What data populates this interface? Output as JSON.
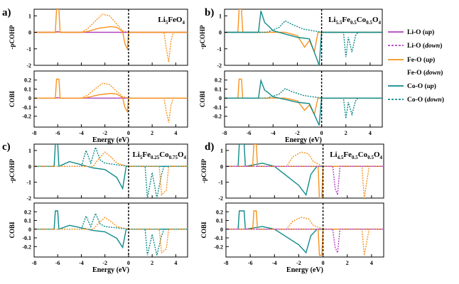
{
  "colors": {
    "li_o": "#b040c0",
    "fe_o": "#f7931e",
    "co_o": "#108a8a",
    "frame": "#000000"
  },
  "legend": [
    {
      "label": "Li-O",
      "spin": "up",
      "color": "#b040c0",
      "style": "solid"
    },
    {
      "label": "Li-O",
      "spin": "down",
      "color": "#b040c0",
      "style": "dashed"
    },
    {
      "label": "Fe-O",
      "spin": "up",
      "color": "#f7931e",
      "style": "solid"
    },
    {
      "label": "Fe-O",
      "spin": "down",
      "color": "#f7931e",
      "style": "dashed"
    },
    {
      "label": "Co-O",
      "spin": "up",
      "color": "#108a8a",
      "style": "solid"
    },
    {
      "label": "Co-O",
      "spin": "down",
      "color": "#108a8a",
      "style": "dashed"
    }
  ],
  "chart_data": [
    {
      "type": "line",
      "panel": "a)",
      "title": "Li5FeO4",
      "xlabel": "Energy (eV)",
      "xlim": [
        -8,
        5
      ],
      "xticks": [
        -8,
        -6,
        -4,
        -2,
        0,
        2,
        4
      ],
      "fermi_level": 0,
      "subplots": [
        {
          "ylabel": "-pCOHP",
          "ylim": [
            -2,
            1.4
          ],
          "yticks": [
            1,
            0,
            -1,
            -2
          ]
        },
        {
          "ylabel": "COBI",
          "ylim": [
            -0.32,
            0.3
          ],
          "yticks": [
            0.2,
            0.1,
            0,
            -0.1,
            -0.2
          ]
        }
      ],
      "series": [
        {
          "name": "Li-O (up)",
          "points_pcohp": [
            [
              -8,
              0
            ],
            [
              -6.2,
              0
            ],
            [
              -6.0,
              0.05
            ],
            [
              -5.8,
              0
            ],
            [
              5,
              0
            ]
          ]
        },
        {
          "name": "Fe-O (up)",
          "points_pcohp": [
            [
              -8,
              0
            ],
            [
              -6.2,
              0
            ],
            [
              -6.1,
              1.4
            ],
            [
              -5.9,
              1.4
            ],
            [
              -5.8,
              0
            ],
            [
              -4,
              0
            ],
            [
              -3.5,
              0.05
            ],
            [
              -2.5,
              0.25
            ],
            [
              -1.5,
              0.35
            ],
            [
              -1,
              0.3
            ],
            [
              -0.5,
              0.05
            ],
            [
              -0.3,
              -0.7
            ],
            [
              -0.1,
              -1.0
            ],
            [
              0,
              0
            ],
            [
              5,
              0
            ]
          ]
        },
        {
          "name": "Fe-O (down)",
          "points_pcohp": [
            [
              -8,
              0
            ],
            [
              -4,
              0
            ],
            [
              -3.5,
              0.2
            ],
            [
              -2.8,
              0.7
            ],
            [
              -2.2,
              1.1
            ],
            [
              -1.6,
              1.0
            ],
            [
              -1,
              0.5
            ],
            [
              -0.5,
              0.1
            ],
            [
              0,
              0
            ],
            [
              3,
              0
            ],
            [
              3.2,
              -1.0
            ],
            [
              3.4,
              -1.8
            ],
            [
              3.6,
              -0.5
            ],
            [
              3.8,
              0
            ],
            [
              5,
              0
            ]
          ]
        }
      ]
    },
    {
      "type": "line",
      "panel": "b)",
      "title": "Li5.5Fe0.5Co0.5O4",
      "xlabel": "Energy (eV)",
      "xlim": [
        -8,
        5
      ],
      "xticks": [
        -8,
        -6,
        -4,
        -2,
        0,
        2,
        4
      ],
      "fermi_level": 0,
      "subplots": [
        {
          "ylabel": "-pCOHP",
          "ylim": [
            -2,
            1.4
          ],
          "yticks": [
            1,
            0,
            -1,
            -2
          ]
        },
        {
          "ylabel": "COBI",
          "ylim": [
            -0.32,
            0.3
          ],
          "yticks": [
            0.2,
            0.1,
            0,
            -0.1,
            -0.2
          ]
        }
      ],
      "series": [
        {
          "name": "Fe-O (up)",
          "points_pcohp": [
            [
              -8,
              0
            ],
            [
              -6.9,
              0
            ],
            [
              -6.8,
              1.4
            ],
            [
              -6.6,
              1.4
            ],
            [
              -6.5,
              0
            ],
            [
              -3,
              0
            ],
            [
              -2,
              -0.2
            ],
            [
              -1.4,
              -0.9
            ],
            [
              -1,
              -0.5
            ],
            [
              -0.6,
              -1.2
            ],
            [
              -0.3,
              0
            ],
            [
              5,
              0
            ]
          ]
        },
        {
          "name": "Co-O (up)",
          "points_pcohp": [
            [
              -8,
              0
            ],
            [
              -5.2,
              0
            ],
            [
              -5.0,
              1.3
            ],
            [
              -4.7,
              0.6
            ],
            [
              -4.4,
              0.4
            ],
            [
              -4,
              0.1
            ],
            [
              -3,
              -0.1
            ],
            [
              -2,
              -0.3
            ],
            [
              -1,
              -0.4
            ],
            [
              -0.4,
              -1.6
            ],
            [
              -0.2,
              -2.0
            ],
            [
              0,
              0
            ],
            [
              5,
              0
            ]
          ]
        },
        {
          "name": "Co-O (down)",
          "points_pcohp": [
            [
              -8,
              0
            ],
            [
              -4.5,
              0
            ],
            [
              -3.5,
              0.3
            ],
            [
              -3,
              0.7
            ],
            [
              -2.5,
              0.5
            ],
            [
              -1.5,
              0.2
            ],
            [
              0,
              0
            ],
            [
              1.8,
              0
            ],
            [
              2.0,
              -1.5
            ],
            [
              2.2,
              -0.3
            ],
            [
              2.5,
              -1.2
            ],
            [
              2.8,
              -0.2
            ],
            [
              3.0,
              0
            ],
            [
              5,
              0
            ]
          ]
        }
      ]
    },
    {
      "type": "line",
      "panel": "c)",
      "title": "Li5Fe0.25Co0.75O4",
      "xlabel": "Energy (eV)",
      "xlim": [
        -8,
        5
      ],
      "xticks": [
        -8,
        -6,
        -4,
        -2,
        0,
        2,
        4
      ],
      "fermi_level": 0,
      "subplots": [
        {
          "ylabel": "-pCOHP",
          "ylim": [
            -2,
            1.4
          ],
          "yticks": [
            1,
            0,
            -1,
            -2
          ]
        },
        {
          "ylabel": "COBI",
          "ylim": [
            -0.32,
            0.3
          ],
          "yticks": [
            0.2,
            0.1,
            0,
            -0.1,
            -0.2
          ]
        }
      ],
      "series": [
        {
          "name": "Co-O (up)",
          "points_pcohp": [
            [
              -8,
              0
            ],
            [
              -6.3,
              0
            ],
            [
              -6.2,
              1.4
            ],
            [
              -6.0,
              1.4
            ],
            [
              -5.9,
              0
            ],
            [
              -5,
              0.3
            ],
            [
              -4,
              0.1
            ],
            [
              -3,
              -0.1
            ],
            [
              -2,
              -0.2
            ],
            [
              -1,
              -0.7
            ],
            [
              -0.5,
              -1.4
            ],
            [
              -0.2,
              0
            ],
            [
              5,
              0
            ]
          ]
        },
        {
          "name": "Co-O (down)",
          "points_pcohp": [
            [
              -8,
              0
            ],
            [
              -4,
              0
            ],
            [
              -3.6,
              1.0
            ],
            [
              -3.2,
              0.2
            ],
            [
              -2.8,
              1.2
            ],
            [
              -2.4,
              0.4
            ],
            [
              -2,
              0.2
            ],
            [
              0,
              0
            ],
            [
              1.4,
              0
            ],
            [
              1.6,
              -2.0
            ],
            [
              2.0,
              -0.4
            ],
            [
              2.4,
              -2.0
            ],
            [
              2.8,
              -0.5
            ],
            [
              3.0,
              0
            ],
            [
              5,
              0
            ]
          ]
        },
        {
          "name": "Fe-O (down)",
          "points_pcohp": [
            [
              -8,
              0
            ],
            [
              -3,
              0
            ],
            [
              -2.5,
              0.5
            ],
            [
              -2,
              0.9
            ],
            [
              -1.5,
              0.6
            ],
            [
              -1,
              0.2
            ],
            [
              0,
              0
            ],
            [
              2.6,
              0
            ],
            [
              2.8,
              -1.8
            ],
            [
              3.2,
              -1.5
            ],
            [
              3.4,
              0
            ],
            [
              5,
              0
            ]
          ]
        }
      ]
    },
    {
      "type": "line",
      "panel": "d)",
      "title": "Li4.5Fe0.5Co0.5O4",
      "xlabel": "Energy (eV)",
      "xlim": [
        -8,
        5
      ],
      "xticks": [
        -8,
        -6,
        -4,
        -2,
        0,
        2,
        4
      ],
      "fermi_level": 0,
      "subplots": [
        {
          "ylabel": "-pCOHP",
          "ylim": [
            -2,
            1.4
          ],
          "yticks": [
            1,
            0,
            -1,
            -2
          ]
        },
        {
          "ylabel": "COBI",
          "ylim": [
            -0.32,
            0.3
          ],
          "yticks": [
            0.2,
            0.1,
            0,
            -0.1,
            -0.2
          ]
        }
      ],
      "series": [
        {
          "name": "Co-O (up)",
          "points_pcohp": [
            [
              -8,
              0
            ],
            [
              -7.0,
              0
            ],
            [
              -6.9,
              1.4
            ],
            [
              -6.5,
              1.4
            ],
            [
              -6.4,
              0
            ],
            [
              -5,
              0.2
            ],
            [
              -4,
              0
            ],
            [
              -3,
              -0.6
            ],
            [
              -2,
              -1.2
            ],
            [
              -1.4,
              -1.8
            ],
            [
              -1,
              -0.5
            ],
            [
              -0.5,
              0
            ],
            [
              5,
              0
            ]
          ]
        },
        {
          "name": "Fe-O (up)",
          "points_pcohp": [
            [
              -8,
              0
            ],
            [
              -5.8,
              0
            ],
            [
              -5.7,
              1.4
            ],
            [
              -5.5,
              1.4
            ],
            [
              -5.4,
              0
            ],
            [
              -0.4,
              0
            ],
            [
              -0.3,
              -2.0
            ],
            [
              -0.1,
              -2.0
            ],
            [
              0,
              0
            ],
            [
              5,
              0
            ]
          ]
        },
        {
          "name": "Fe-O (down)",
          "points_pcohp": [
            [
              -8,
              0
            ],
            [
              -3,
              0
            ],
            [
              -2.5,
              0.6
            ],
            [
              -1.8,
              0.9
            ],
            [
              -1.2,
              0.8
            ],
            [
              -0.8,
              0.3
            ],
            [
              0,
              0
            ],
            [
              3.2,
              0
            ],
            [
              3.4,
              -2.0
            ],
            [
              3.6,
              -1.0
            ],
            [
              3.8,
              0
            ],
            [
              5,
              0
            ]
          ]
        },
        {
          "name": "Li-O (down)",
          "points_pcohp": [
            [
              -8,
              0
            ],
            [
              0.8,
              0
            ],
            [
              1.0,
              -1.4
            ],
            [
              1.2,
              -1.8
            ],
            [
              1.4,
              0
            ],
            [
              5,
              0
            ]
          ]
        }
      ]
    }
  ]
}
